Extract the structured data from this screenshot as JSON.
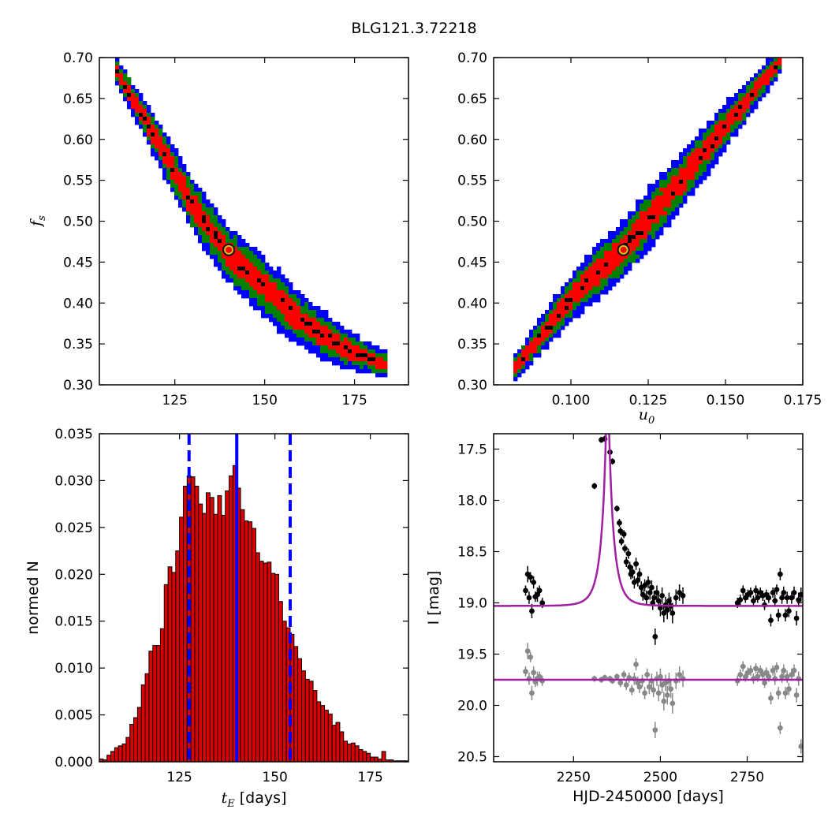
{
  "figure": {
    "title": "BLG121.3.72218"
  },
  "chart_data": [
    {
      "type": "heatmap",
      "panel": "top-left",
      "xlabel": "",
      "ylabel_main": "f",
      "ylabel_sub": "s",
      "xlim": [
        104,
        190
      ],
      "ylim": [
        0.3,
        0.7
      ],
      "xticks": [
        125,
        150,
        175
      ],
      "yticks": [
        0.3,
        0.35,
        0.4,
        0.45,
        0.5,
        0.55,
        0.6,
        0.65,
        0.7
      ],
      "xtick_labels": [
        "125",
        "150",
        "175"
      ],
      "ytick_labels": [
        "0.30",
        "0.35",
        "0.40",
        "0.45",
        "0.50",
        "0.55",
        "0.60",
        "0.65",
        "0.70"
      ],
      "ridge": [
        [
          108,
          0.69
        ],
        [
          120,
          0.6
        ],
        [
          130,
          0.52
        ],
        [
          140,
          0.46
        ],
        [
          150,
          0.42
        ],
        [
          160,
          0.38
        ],
        [
          172,
          0.345
        ],
        [
          184,
          0.325
        ]
      ],
      "contour_colors": [
        "#0000ff",
        "#008000",
        "#ff0000",
        "#000000"
      ],
      "best_fit": [
        140.0,
        0.465
      ]
    },
    {
      "type": "heatmap",
      "panel": "top-right",
      "xlabel_main": "u",
      "xlabel_sub": "0",
      "ylabel": "",
      "xlim": [
        0.075,
        0.175
      ],
      "ylim": [
        0.3,
        0.7
      ],
      "xticks": [
        0.1,
        0.125,
        0.15,
        0.175
      ],
      "yticks": [
        0.3,
        0.35,
        0.4,
        0.45,
        0.5,
        0.55,
        0.6,
        0.65,
        0.7
      ],
      "xtick_labels": [
        "0.100",
        "0.125",
        "0.150",
        "0.175"
      ],
      "ytick_labels": [
        "0.30",
        "0.35",
        "0.40",
        "0.45",
        "0.50",
        "0.55",
        "0.60",
        "0.65",
        "0.70"
      ],
      "ridge": [
        [
          0.082,
          0.32
        ],
        [
          0.1,
          0.405
        ],
        [
          0.117,
          0.465
        ],
        [
          0.135,
          0.545
        ],
        [
          0.15,
          0.615
        ],
        [
          0.168,
          0.695
        ]
      ],
      "contour_colors": [
        "#0000ff",
        "#008000",
        "#ff0000",
        "#000000"
      ],
      "best_fit": [
        0.117,
        0.465
      ]
    },
    {
      "type": "bar",
      "panel": "bottom-left",
      "xlabel_main": "t",
      "xlabel_sub": "E",
      "xlabel_rest": " [days]",
      "ylabel": "normed N",
      "xlim": [
        104,
        185
      ],
      "ylim": [
        0,
        0.035
      ],
      "xticks": [
        125,
        150,
        175
      ],
      "yticks": [
        0,
        0.005,
        0.01,
        0.015,
        0.02,
        0.025,
        0.03,
        0.035
      ],
      "xtick_labels": [
        "125",
        "150",
        "175"
      ],
      "ytick_labels": [
        "0.000",
        "0.005",
        "0.010",
        "0.015",
        "0.020",
        "0.025",
        "0.030",
        "0.035"
      ],
      "bin_start": 104,
      "bin_width": 1,
      "values": [
        0.0003,
        0.0002,
        0.0007,
        0.0011,
        0.0015,
        0.0017,
        0.0019,
        0.0026,
        0.004,
        0.0047,
        0.0058,
        0.0082,
        0.0094,
        0.0118,
        0.0124,
        0.0124,
        0.0142,
        0.0189,
        0.0208,
        0.0202,
        0.0225,
        0.0261,
        0.0294,
        0.0305,
        0.0304,
        0.0294,
        0.0275,
        0.0265,
        0.0287,
        0.0282,
        0.0264,
        0.0284,
        0.0263,
        0.0289,
        0.0305,
        0.0316,
        0.0292,
        0.0269,
        0.0257,
        0.0256,
        0.0249,
        0.0223,
        0.0214,
        0.0212,
        0.0213,
        0.0201,
        0.02,
        0.0171,
        0.015,
        0.0143,
        0.0136,
        0.0123,
        0.011,
        0.0097,
        0.0088,
        0.0086,
        0.0076,
        0.0064,
        0.006,
        0.0055,
        0.0051,
        0.0039,
        0.0042,
        0.0032,
        0.0022,
        0.0019,
        0.002,
        0.0017,
        0.0013,
        0.0011,
        0.0009,
        0.0005,
        0.0005,
        0.0003,
        0.0011,
        0.0002,
        0.0002,
        0.0001,
        0.0001,
        0.0001,
        0.0001
      ],
      "median": 140.0,
      "lower": 127.5,
      "upper": 154.0,
      "bar_color": "#dd0000",
      "line_color": "#0000ff"
    },
    {
      "type": "scatter",
      "panel": "bottom-right",
      "xlabel": "HJD-2450000 [days]",
      "ylabel": "I [mag]",
      "xlim": [
        2020,
        2910
      ],
      "ylim": [
        20.55,
        17.35
      ],
      "xticks": [
        2250,
        2500,
        2750
      ],
      "yticks": [
        17.5,
        18.0,
        18.5,
        19.0,
        19.5,
        20.0,
        20.5
      ],
      "xtick_labels": [
        "2250",
        "2500",
        "2750"
      ],
      "ytick_labels": [
        "17.5",
        "18.0",
        "18.5",
        "19.0",
        "19.5",
        "20.0",
        "20.5"
      ],
      "model": {
        "t0": 2348,
        "tE": 140.0,
        "u0": 0.117,
        "baseline": 19.03,
        "residual_level": 19.75,
        "color": "#a020a0"
      },
      "series": [
        {
          "name": "",
          "color": "#000000",
          "points": [
            [
              2112,
              18.88,
              0.05
            ],
            [
              2118,
              18.72,
              0.08
            ],
            [
              2122,
              18.95,
              0.06
            ],
            [
              2126,
              18.75,
              0.05
            ],
            [
              2130,
              19.08,
              0.07
            ],
            [
              2135,
              18.8,
              0.06
            ],
            [
              2140,
              18.94,
              0.05
            ],
            [
              2146,
              18.92,
              0.07
            ],
            [
              2152,
              18.88,
              0.05
            ],
            [
              2160,
              19.0,
              0.05
            ],
            [
              2310,
              17.86,
              0.03
            ],
            [
              2330,
              17.41,
              0.03
            ],
            [
              2340,
              17.4,
              0.03
            ],
            [
              2355,
              17.53,
              0.03
            ],
            [
              2362,
              17.62,
              0.03
            ],
            [
              2375,
              18.08,
              0.03
            ],
            [
              2382,
              18.22,
              0.04
            ],
            [
              2385,
              18.3,
              0.04
            ],
            [
              2388,
              18.4,
              0.04
            ],
            [
              2395,
              18.33,
              0.04
            ],
            [
              2398,
              18.47,
              0.04
            ],
            [
              2402,
              18.6,
              0.05
            ],
            [
              2408,
              18.52,
              0.05
            ],
            [
              2412,
              18.65,
              0.05
            ],
            [
              2415,
              18.72,
              0.05
            ],
            [
              2420,
              18.7,
              0.06
            ],
            [
              2425,
              18.8,
              0.06
            ],
            [
              2430,
              18.62,
              0.06
            ],
            [
              2435,
              18.78,
              0.06
            ],
            [
              2440,
              18.72,
              0.06
            ],
            [
              2445,
              18.85,
              0.06
            ],
            [
              2450,
              18.92,
              0.06
            ],
            [
              2455,
              18.83,
              0.06
            ],
            [
              2460,
              18.95,
              0.07
            ],
            [
              2465,
              18.8,
              0.06
            ],
            [
              2470,
              18.9,
              0.07
            ],
            [
              2475,
              18.85,
              0.07
            ],
            [
              2478,
              19.0,
              0.07
            ],
            [
              2482,
              18.95,
              0.07
            ],
            [
              2485,
              19.33,
              0.08
            ],
            [
              2490,
              18.9,
              0.07
            ],
            [
              2495,
              18.98,
              0.08
            ],
            [
              2500,
              19.05,
              0.08
            ],
            [
              2505,
              18.93,
              0.08
            ],
            [
              2510,
              19.1,
              0.09
            ],
            [
              2515,
              19.02,
              0.08
            ],
            [
              2520,
              19.07,
              0.09
            ],
            [
              2525,
              18.98,
              0.08
            ],
            [
              2530,
              19.03,
              0.09
            ],
            [
              2535,
              19.1,
              0.1
            ],
            [
              2545,
              18.95,
              0.08
            ],
            [
              2555,
              18.9,
              0.08
            ],
            [
              2565,
              18.93,
              0.08
            ],
            [
              2722,
              19.0,
              0.05
            ],
            [
              2730,
              18.97,
              0.05
            ],
            [
              2738,
              18.88,
              0.05
            ],
            [
              2745,
              18.95,
              0.05
            ],
            [
              2752,
              18.92,
              0.05
            ],
            [
              2760,
              18.9,
              0.05
            ],
            [
              2768,
              18.98,
              0.05
            ],
            [
              2775,
              18.88,
              0.05
            ],
            [
              2780,
              18.95,
              0.05
            ],
            [
              2788,
              18.9,
              0.05
            ],
            [
              2795,
              18.93,
              0.05
            ],
            [
              2800,
              19.02,
              0.05
            ],
            [
              2805,
              18.92,
              0.05
            ],
            [
              2812,
              18.95,
              0.05
            ],
            [
              2818,
              19.17,
              0.06
            ],
            [
              2824,
              18.9,
              0.05
            ],
            [
              2830,
              18.98,
              0.06
            ],
            [
              2835,
              18.87,
              0.05
            ],
            [
              2840,
              19.12,
              0.06
            ],
            [
              2845,
              18.72,
              0.06
            ],
            [
              2850,
              18.95,
              0.06
            ],
            [
              2855,
              18.9,
              0.06
            ],
            [
              2860,
              19.12,
              0.06
            ],
            [
              2865,
              18.95,
              0.06
            ],
            [
              2870,
              19.08,
              0.06
            ],
            [
              2878,
              18.95,
              0.06
            ],
            [
              2885,
              18.9,
              0.06
            ],
            [
              2892,
              19.15,
              0.07
            ],
            [
              2898,
              18.97,
              0.07
            ],
            [
              2905,
              18.92,
              0.07
            ]
          ]
        },
        {
          "name": "",
          "color": "#888888",
          "points": [
            [
              2112,
              19.67,
              0.05
            ],
            [
              2118,
              19.47,
              0.08
            ],
            [
              2122,
              19.74,
              0.06
            ],
            [
              2126,
              19.53,
              0.05
            ],
            [
              2130,
              19.88,
              0.07
            ],
            [
              2135,
              19.68,
              0.06
            ],
            [
              2140,
              19.77,
              0.05
            ],
            [
              2146,
              19.74,
              0.07
            ],
            [
              2152,
              19.72,
              0.05
            ],
            [
              2160,
              19.76,
              0.05
            ],
            [
              2310,
              19.74,
              0.03
            ],
            [
              2330,
              19.75,
              0.03
            ],
            [
              2340,
              19.73,
              0.03
            ],
            [
              2355,
              19.74,
              0.03
            ],
            [
              2362,
              19.76,
              0.03
            ],
            [
              2375,
              19.72,
              0.03
            ],
            [
              2385,
              19.78,
              0.04
            ],
            [
              2395,
              19.7,
              0.04
            ],
            [
              2402,
              19.8,
              0.05
            ],
            [
              2410,
              19.73,
              0.05
            ],
            [
              2418,
              19.85,
              0.05
            ],
            [
              2425,
              19.74,
              0.06
            ],
            [
              2430,
              19.6,
              0.06
            ],
            [
              2435,
              19.78,
              0.06
            ],
            [
              2440,
              19.82,
              0.06
            ],
            [
              2448,
              19.76,
              0.06
            ],
            [
              2455,
              19.88,
              0.06
            ],
            [
              2462,
              19.7,
              0.06
            ],
            [
              2468,
              19.82,
              0.07
            ],
            [
              2475,
              19.76,
              0.07
            ],
            [
              2480,
              19.85,
              0.07
            ],
            [
              2485,
              20.24,
              0.08
            ],
            [
              2490,
              19.74,
              0.07
            ],
            [
              2495,
              19.88,
              0.08
            ],
            [
              2500,
              19.72,
              0.08
            ],
            [
              2505,
              19.8,
              0.08
            ],
            [
              2510,
              19.96,
              0.09
            ],
            [
              2515,
              19.78,
              0.08
            ],
            [
              2520,
              19.9,
              0.09
            ],
            [
              2525,
              19.76,
              0.08
            ],
            [
              2530,
              19.84,
              0.09
            ],
            [
              2535,
              19.98,
              0.1
            ],
            [
              2545,
              19.76,
              0.08
            ],
            [
              2555,
              19.7,
              0.08
            ],
            [
              2565,
              19.74,
              0.08
            ],
            [
              2722,
              19.76,
              0.05
            ],
            [
              2730,
              19.7,
              0.05
            ],
            [
              2738,
              19.62,
              0.05
            ],
            [
              2745,
              19.72,
              0.05
            ],
            [
              2752,
              19.68,
              0.05
            ],
            [
              2760,
              19.66,
              0.05
            ],
            [
              2768,
              19.74,
              0.05
            ],
            [
              2775,
              19.64,
              0.05
            ],
            [
              2780,
              19.72,
              0.05
            ],
            [
              2788,
              19.66,
              0.05
            ],
            [
              2795,
              19.7,
              0.05
            ],
            [
              2800,
              19.78,
              0.05
            ],
            [
              2805,
              19.68,
              0.05
            ],
            [
              2812,
              19.72,
              0.05
            ],
            [
              2818,
              19.93,
              0.06
            ],
            [
              2824,
              19.66,
              0.05
            ],
            [
              2830,
              19.74,
              0.06
            ],
            [
              2835,
              19.63,
              0.05
            ],
            [
              2840,
              19.88,
              0.06
            ],
            [
              2845,
              20.22,
              0.06
            ],
            [
              2850,
              19.72,
              0.06
            ],
            [
              2855,
              19.66,
              0.06
            ],
            [
              2860,
              19.88,
              0.06
            ],
            [
              2865,
              19.72,
              0.06
            ],
            [
              2870,
              19.84,
              0.06
            ],
            [
              2878,
              19.7,
              0.06
            ],
            [
              2885,
              19.66,
              0.06
            ],
            [
              2892,
              19.9,
              0.07
            ],
            [
              2898,
              19.74,
              0.07
            ],
            [
              2905,
              20.4,
              0.07
            ]
          ]
        }
      ]
    }
  ]
}
